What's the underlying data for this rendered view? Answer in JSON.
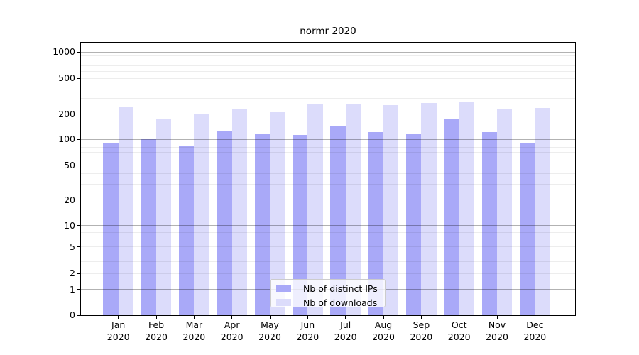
{
  "title": "normr 2020",
  "axes": {
    "y_tick_labels": [
      "0",
      "1",
      "2",
      "5",
      "10",
      "20",
      "50",
      "100",
      "200",
      "500",
      "1000"
    ],
    "x_months": [
      "Jan",
      "Feb",
      "Mar",
      "Apr",
      "May",
      "Jun",
      "Jul",
      "Aug",
      "Sep",
      "Oct",
      "Nov",
      "Dec"
    ],
    "x_year": "2020"
  },
  "chart_data": {
    "type": "bar",
    "title": "normr 2020",
    "categories": [
      "Jan 2020",
      "Feb 2020",
      "Mar 2020",
      "Apr 2020",
      "May 2020",
      "Jun 2020",
      "Jul 2020",
      "Aug 2020",
      "Sep 2020",
      "Oct 2020",
      "Nov 2020",
      "Dec 2020"
    ],
    "series": [
      {
        "name": "Nb of distinct IPs",
        "color": "#a9a9f8",
        "values": [
          90,
          100,
          83,
          126,
          114,
          112,
          144,
          121,
          114,
          172,
          121,
          90
        ]
      },
      {
        "name": "Nb of downloads",
        "color": "#dcdcfb",
        "values": [
          236,
          176,
          197,
          226,
          208,
          256,
          255,
          253,
          264,
          269,
          224,
          233
        ]
      }
    ],
    "yscale": "symlog",
    "ytick_values": [
      0,
      1,
      2,
      5,
      10,
      20,
      50,
      100,
      200,
      500,
      1000
    ],
    "ylim": [
      0,
      1280
    ],
    "grid": true,
    "grid_over_bars": true,
    "legend_position": "lower center inside plot",
    "colors": {
      "major_grid": "#b3b3b3",
      "minor_grid": "#ededed",
      "axis": "#000000",
      "background": "#ffffff",
      "text": "#000000"
    }
  }
}
